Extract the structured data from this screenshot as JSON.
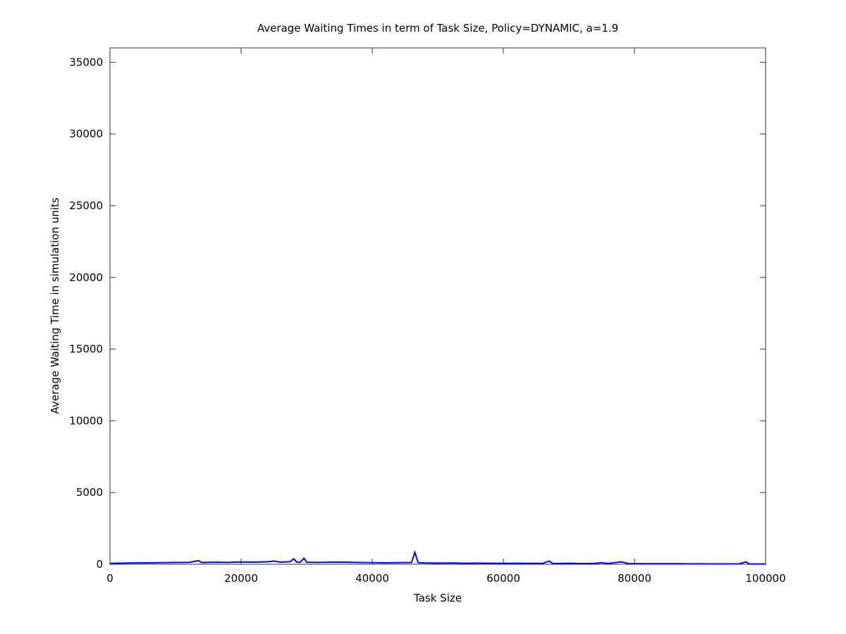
{
  "chart_data": {
    "type": "line",
    "title": "Average Waiting Times in term of Task Size, Policy=DYNAMIC, a=1.9",
    "xlabel": "Task Size",
    "ylabel": "Average Waiting Time in simulation units",
    "xlim": [
      0,
      100000
    ],
    "ylim": [
      0,
      36000
    ],
    "x_ticks": [
      0,
      20000,
      40000,
      60000,
      80000,
      100000
    ],
    "y_ticks": [
      0,
      5000,
      10000,
      15000,
      20000,
      25000,
      30000,
      35000
    ],
    "x_tick_labels": [
      "0",
      "20000",
      "40000",
      "60000",
      "80000",
      "100000"
    ],
    "y_tick_labels": [
      "0",
      "5000",
      "10000",
      "15000",
      "20000",
      "25000",
      "30000",
      "35000"
    ],
    "grid": false,
    "legend": false,
    "series": [
      {
        "color": "#0000ff",
        "points": [
          [
            0,
            60
          ],
          [
            2000,
            80
          ],
          [
            4000,
            90
          ],
          [
            6000,
            100
          ],
          [
            8000,
            110
          ],
          [
            10000,
            120
          ],
          [
            12000,
            130
          ],
          [
            13500,
            250
          ],
          [
            14000,
            120
          ],
          [
            16000,
            140
          ],
          [
            18000,
            130
          ],
          [
            20000,
            160
          ],
          [
            22000,
            150
          ],
          [
            24000,
            170
          ],
          [
            25000,
            220
          ],
          [
            26000,
            150
          ],
          [
            27500,
            180
          ],
          [
            28000,
            380
          ],
          [
            28500,
            150
          ],
          [
            29000,
            140
          ],
          [
            29600,
            420
          ],
          [
            30000,
            140
          ],
          [
            32000,
            130
          ],
          [
            34000,
            150
          ],
          [
            36000,
            140
          ],
          [
            38000,
            120
          ],
          [
            40000,
            110
          ],
          [
            42000,
            100
          ],
          [
            44000,
            110
          ],
          [
            46000,
            120
          ],
          [
            46500,
            830
          ],
          [
            47000,
            110
          ],
          [
            48000,
            90
          ],
          [
            50000,
            80
          ],
          [
            52000,
            90
          ],
          [
            54000,
            70
          ],
          [
            56000,
            80
          ],
          [
            58000,
            70
          ],
          [
            60000,
            60
          ],
          [
            62000,
            70
          ],
          [
            64000,
            60
          ],
          [
            66000,
            60
          ],
          [
            67000,
            220
          ],
          [
            67500,
            60
          ],
          [
            68000,
            50
          ],
          [
            70000,
            70
          ],
          [
            72000,
            50
          ],
          [
            74000,
            60
          ],
          [
            75000,
            110
          ],
          [
            76000,
            50
          ],
          [
            78000,
            170
          ],
          [
            79000,
            50
          ],
          [
            80000,
            45
          ],
          [
            82000,
            40
          ],
          [
            84000,
            40
          ],
          [
            86000,
            35
          ],
          [
            88000,
            30
          ],
          [
            90000,
            30
          ],
          [
            92000,
            25
          ],
          [
            94000,
            25
          ],
          [
            96000,
            25
          ],
          [
            97000,
            170
          ],
          [
            97500,
            25
          ],
          [
            98000,
            20
          ],
          [
            100000,
            20
          ]
        ]
      }
    ]
  }
}
